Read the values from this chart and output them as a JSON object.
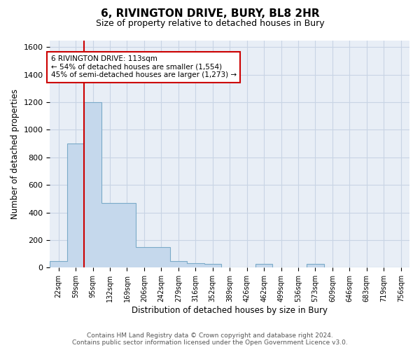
{
  "title": "6, RIVINGTON DRIVE, BURY, BL8 2HR",
  "subtitle": "Size of property relative to detached houses in Bury",
  "xlabel": "Distribution of detached houses by size in Bury",
  "ylabel": "Number of detached properties",
  "footer_line1": "Contains HM Land Registry data © Crown copyright and database right 2024.",
  "footer_line2": "Contains public sector information licensed under the Open Government Licence v3.0.",
  "bar_fill_color": "#c5d8ec",
  "bar_edge_color": "#7aaac8",
  "grid_color": "#c8d4e4",
  "bg_color": "#e8eef6",
  "vline_color": "#cc0000",
  "annotation_box_edge": "#cc0000",
  "categories": [
    "22sqm",
    "59sqm",
    "95sqm",
    "132sqm",
    "169sqm",
    "206sqm",
    "242sqm",
    "279sqm",
    "316sqm",
    "352sqm",
    "389sqm",
    "426sqm",
    "462sqm",
    "499sqm",
    "536sqm",
    "573sqm",
    "609sqm",
    "646sqm",
    "683sqm",
    "719sqm",
    "756sqm"
  ],
  "values": [
    45,
    900,
    1200,
    470,
    470,
    150,
    150,
    50,
    30,
    25,
    0,
    0,
    25,
    0,
    0,
    25,
    0,
    0,
    0,
    0,
    0
  ],
  "ylim": [
    0,
    1650
  ],
  "yticks": [
    0,
    200,
    400,
    600,
    800,
    1000,
    1200,
    1400,
    1600
  ],
  "vline_x_index": 2,
  "annotation_text": "6 RIVINGTON DRIVE: 113sqm\n← 54% of detached houses are smaller (1,554)\n45% of semi-detached houses are larger (1,273) →"
}
